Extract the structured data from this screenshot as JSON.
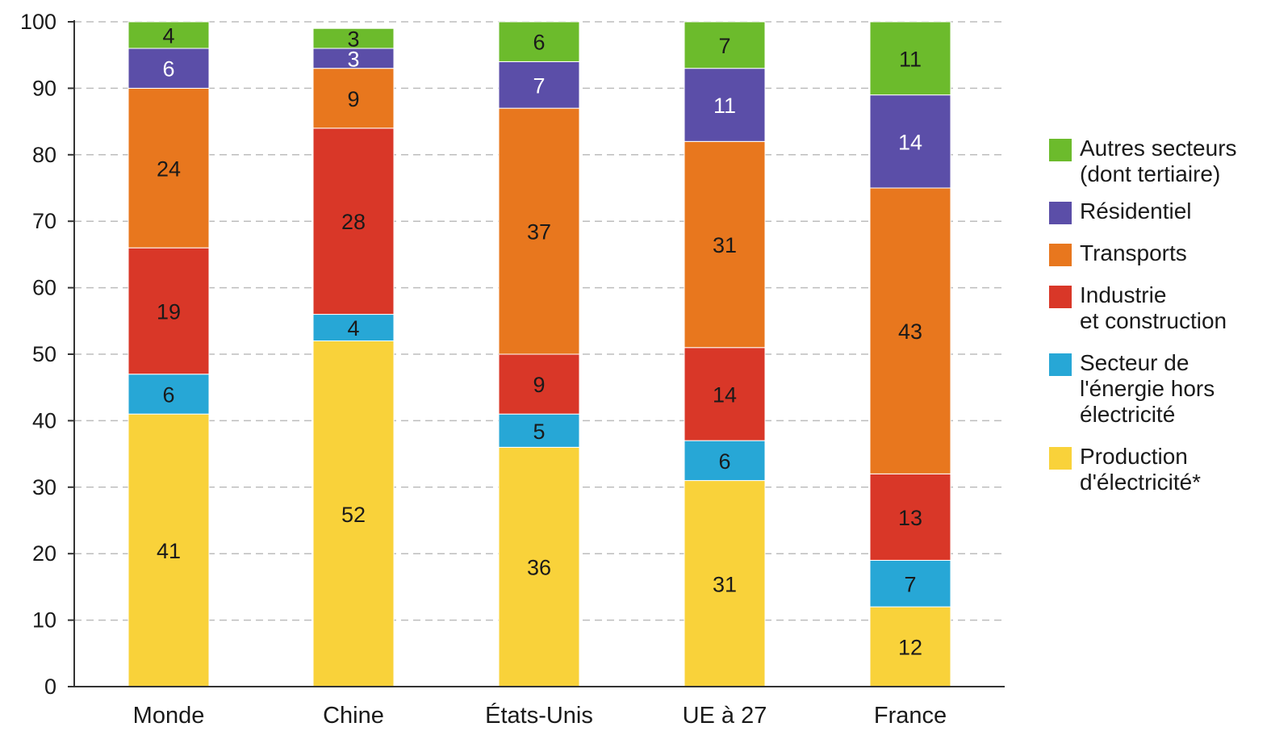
{
  "colors": {
    "autres": "#6cbb2c",
    "residentiel": "#5b4ea8",
    "transports": "#e8771e",
    "industrie": "#d93728",
    "energie": "#27a7d6",
    "production": "#f9d23a",
    "grid": "#bdbdbd",
    "axis": "#333333"
  },
  "chart_data": {
    "type": "bar",
    "stacked": true,
    "categories": [
      "Monde",
      "Chine",
      "États-Unis",
      "UE à 27",
      "France"
    ],
    "series": [
      {
        "name": "Production\nd'électricité*",
        "color": "#f9d23a",
        "values": [
          41,
          52,
          36,
          31,
          12
        ]
      },
      {
        "name": "Secteur de\nl'énergie hors\nélectricité",
        "color": "#27a7d6",
        "values": [
          6,
          4,
          5,
          6,
          7
        ]
      },
      {
        "name": "Industrie\net construction",
        "color": "#d93728",
        "values": [
          19,
          28,
          9,
          14,
          13
        ]
      },
      {
        "name": "Transports",
        "color": "#e8771e",
        "values": [
          24,
          9,
          37,
          31,
          43
        ]
      },
      {
        "name": "Résidentiel",
        "color": "#5b4ea8",
        "values": [
          6,
          3,
          7,
          11,
          14
        ]
      },
      {
        "name": "Autres secteurs\n(dont tertiaire)",
        "color": "#6cbb2c",
        "values": [
          4,
          3,
          6,
          7,
          11
        ]
      }
    ],
    "ylim": [
      0,
      100
    ],
    "yticks": [
      0,
      10,
      20,
      30,
      40,
      50,
      60,
      70,
      80,
      90,
      100
    ],
    "grid": true,
    "legend_position": "right"
  }
}
